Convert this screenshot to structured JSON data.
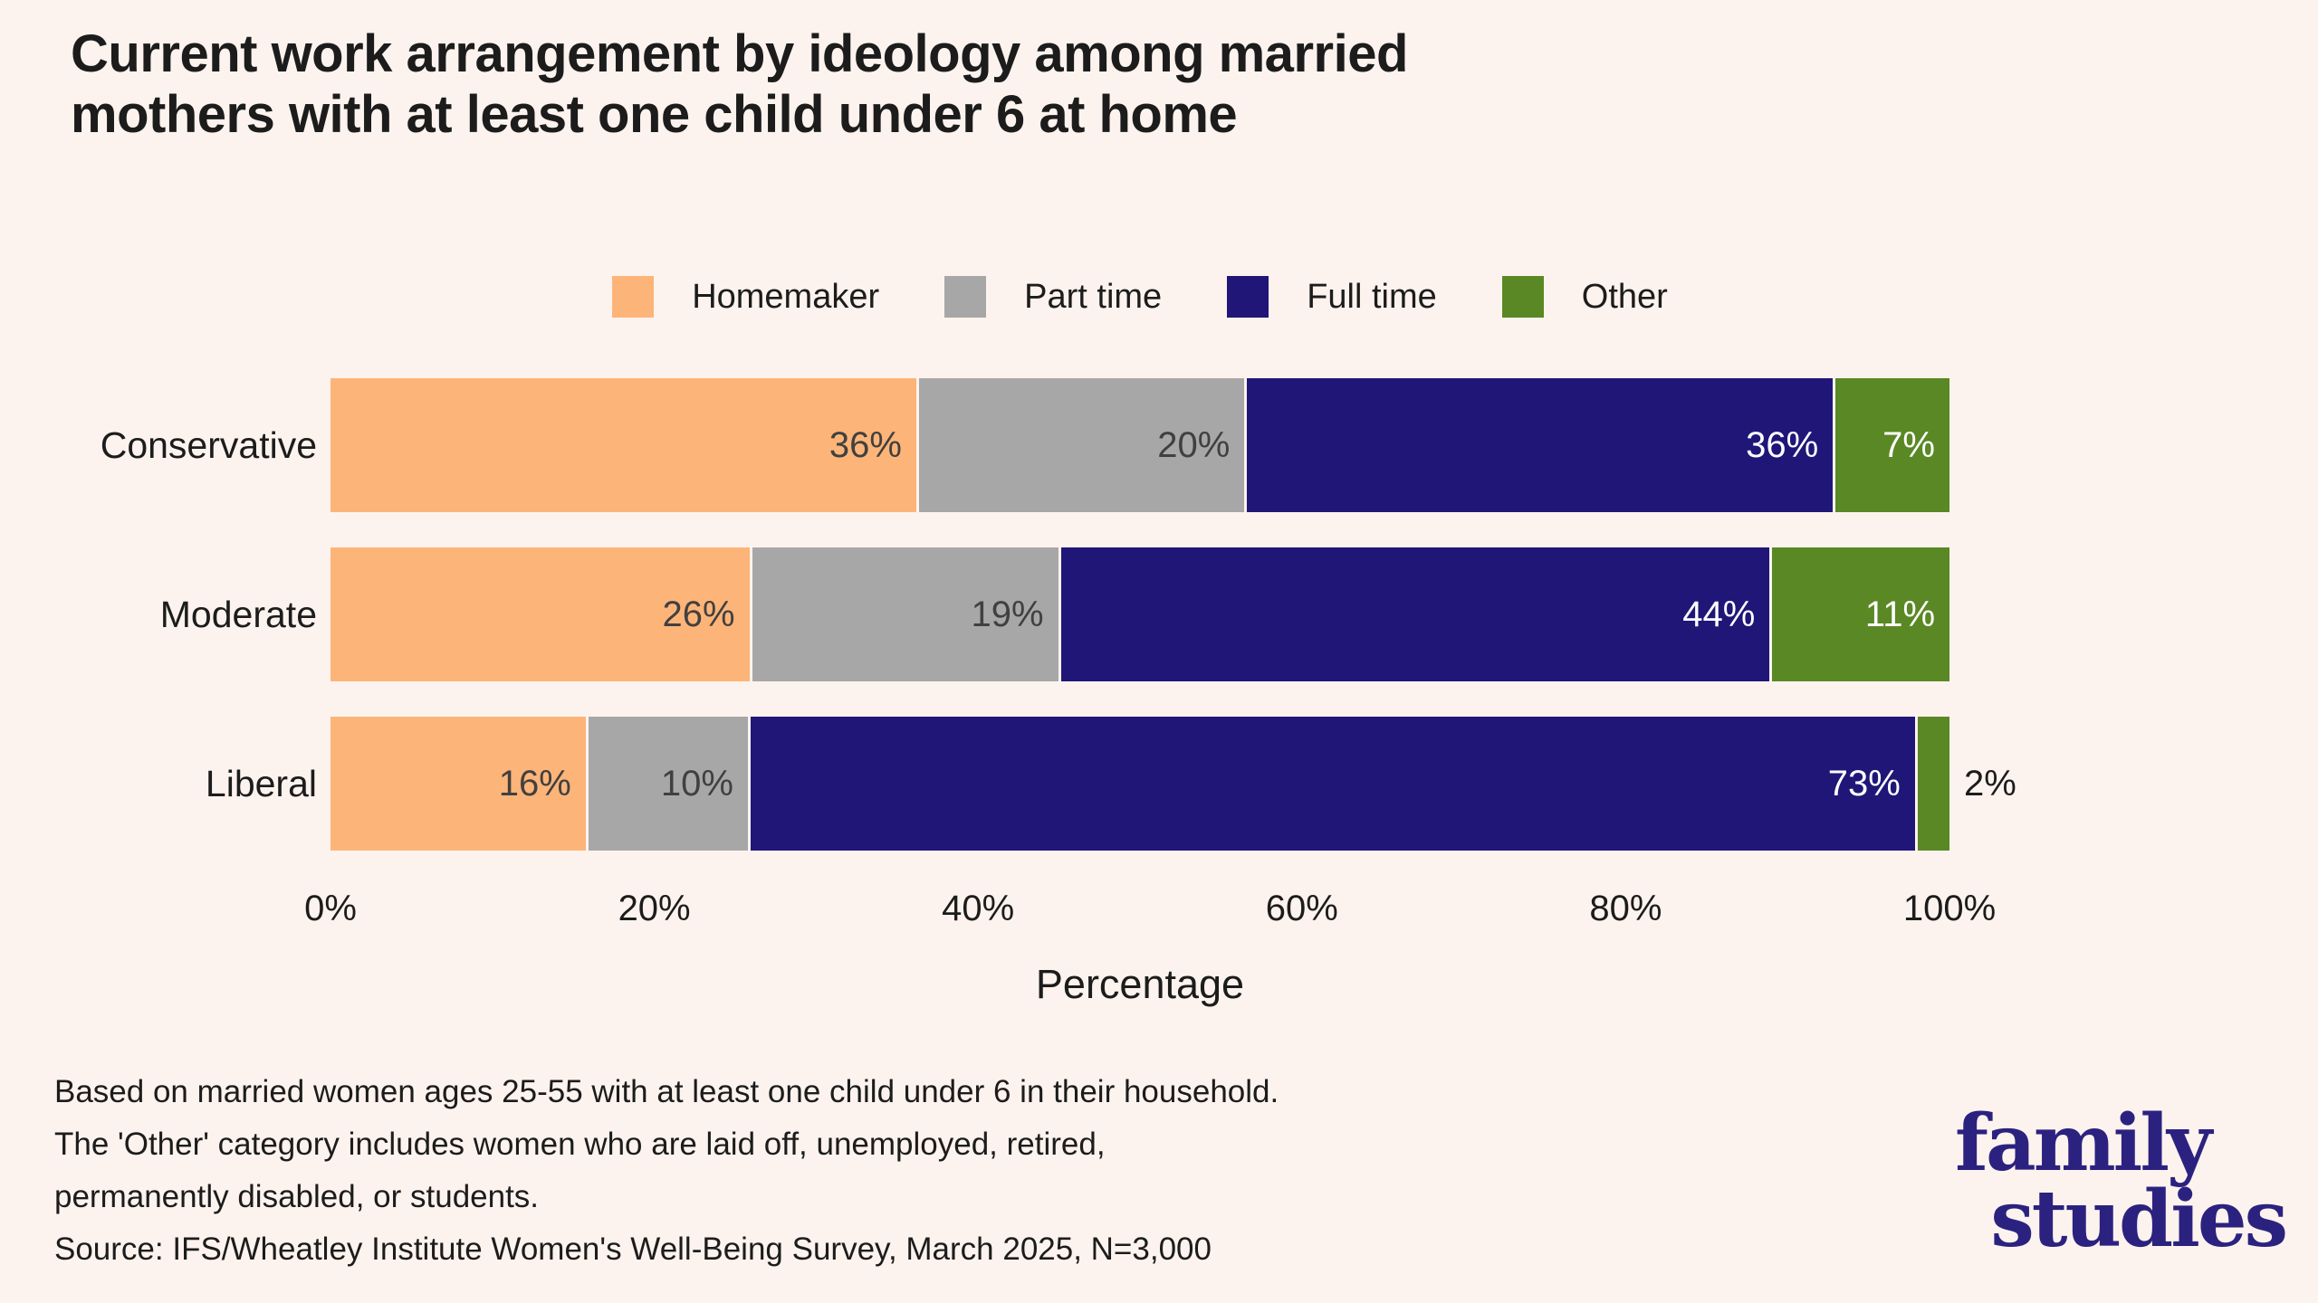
{
  "title": {
    "line1": "Current work arrangement by ideology among married",
    "line2": "mothers with at least one child under 6 at home"
  },
  "chart_data": {
    "type": "bar",
    "stacked": true,
    "orientation": "horizontal",
    "categories": [
      "Conservative",
      "Moderate",
      "Liberal"
    ],
    "series": [
      {
        "name": "Homemaker",
        "color": "#FDB478",
        "label_color": "#404040",
        "values": [
          36,
          26,
          16
        ]
      },
      {
        "name": "Part time",
        "color": "#A8A7A7",
        "label_color": "#404040",
        "values": [
          20,
          19,
          10
        ]
      },
      {
        "name": "Full time",
        "color": "#201678",
        "label_color": "#FFFFFF",
        "values": [
          36,
          44,
          73
        ]
      },
      {
        "name": "Other",
        "color": "#5A8825",
        "label_color": "#FFFFFF",
        "values": [
          7,
          11,
          2
        ]
      }
    ],
    "value_suffix": "%",
    "x_ticks": [
      "0%",
      "20%",
      "40%",
      "60%",
      "80%",
      "100%"
    ],
    "xlabel": "Percentage",
    "xlim": [
      0,
      100
    ],
    "legend_position": "top",
    "grid": false,
    "background_color": "#FDF3EE",
    "outside_label_note": "Liberal Other 2% label drawn outside bar"
  },
  "notes": {
    "line1": "Based on married women ages 25-55 with at least one child under 6 in their household.",
    "line2": "The 'Other' category includes women who are laid off, unemployed, retired,",
    "line3": "permanently disabled, or students.",
    "source": "Source: IFS/Wheatley Institute Women's Well-Being Survey, March 2025, N=3,000"
  },
  "logo": {
    "line1": "family",
    "line2": "studies",
    "color": "#2B2280"
  }
}
